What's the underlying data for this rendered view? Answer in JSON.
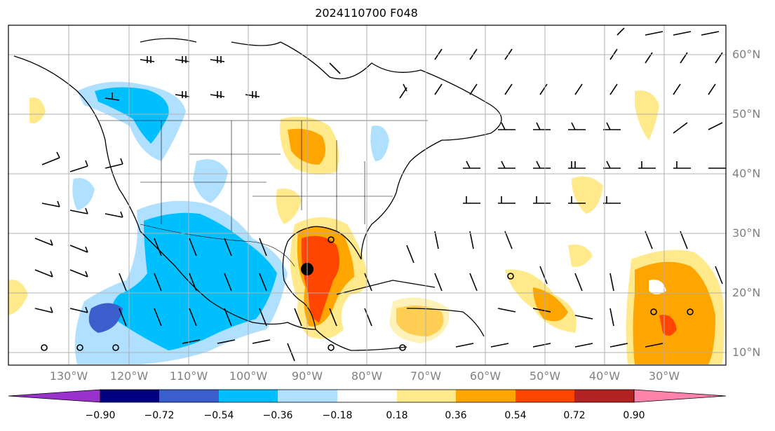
{
  "title": "2024110700 F048",
  "lat_labels": [
    "60°N",
    "50°N",
    "40°N",
    "30°N",
    "20°N",
    "10°N"
  ],
  "lon_labels": [
    "130°W",
    "120°W",
    "110°W",
    "100°W",
    "90°W",
    "80°W",
    "70°W",
    "60°W",
    "50°W",
    "40°W",
    "30°W"
  ],
  "colorbar": {
    "ticks": [
      "−0.90",
      "−0.72",
      "−0.54",
      "−0.36",
      "−0.18",
      "0.18",
      "0.36",
      "0.54",
      "0.72",
      "0.90"
    ],
    "colors": [
      "#9932cc",
      "#000080",
      "#3a5fcd",
      "#00bfff",
      "#b0e0ff",
      "#ffffff",
      "#ffe98a",
      "#ffa500",
      "#ff4500",
      "#b22222",
      "#ff82ab"
    ]
  },
  "colors": {
    "coast": "#000000",
    "grid": "#b0b0b0",
    "labels": "#808080"
  },
  "markers": {
    "storm_center": "filled-black-dot",
    "open_circles": "hollow-circle-markers"
  }
}
